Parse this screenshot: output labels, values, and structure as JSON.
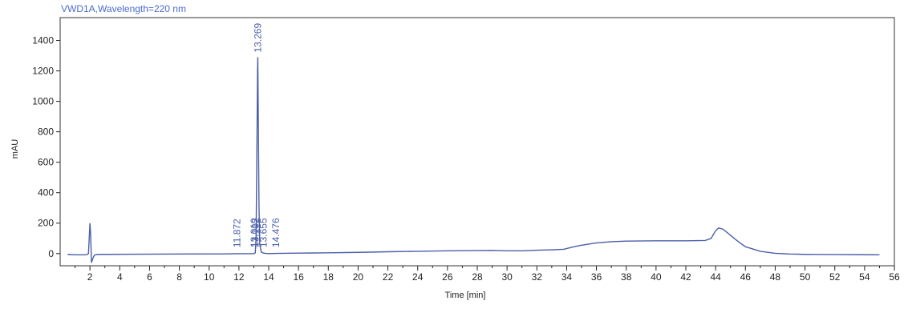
{
  "chart_data": {
    "type": "line",
    "title": "VWD1A,Wavelength=220 nm",
    "xlabel": "Time [min]",
    "ylabel": "mAU",
    "xlim": [
      0,
      56
    ],
    "ylim": [
      -80,
      1550
    ],
    "xticks": [
      2,
      4,
      6,
      8,
      10,
      12,
      14,
      16,
      18,
      20,
      22,
      24,
      26,
      28,
      30,
      32,
      34,
      36,
      38,
      40,
      42,
      44,
      46,
      48,
      50,
      52,
      54,
      56
    ],
    "yticks": [
      0,
      200,
      400,
      600,
      800,
      1000,
      1200,
      1400
    ],
    "grid": false,
    "colors": {
      "trace": "#4a5fa8",
      "title": "#4a6bd0",
      "axis": "#222222",
      "frame": "#333333"
    },
    "series": [
      {
        "x": [
          0.5,
          1.0,
          1.5,
          1.8,
          1.9,
          2.0,
          2.05,
          2.1,
          2.2,
          2.3,
          2.5,
          3,
          5,
          8,
          10,
          11,
          11.872,
          12,
          12.5,
          13.0,
          13.1,
          13.15,
          13.2,
          13.25,
          13.269,
          13.3,
          13.35,
          13.4,
          13.5,
          13.655,
          13.8,
          14.0,
          14.476,
          15,
          18,
          20,
          22,
          24,
          26,
          28,
          29,
          30,
          31,
          32,
          33,
          33.8,
          34.5,
          35,
          36,
          37,
          38,
          40,
          42,
          43.3,
          43.7,
          44.0,
          44.2,
          44.5,
          45.0,
          45.5,
          46,
          47,
          48,
          49,
          50,
          52,
          54,
          55
        ],
        "y": [
          -5,
          -8,
          -8,
          -7,
          0,
          200,
          120,
          -60,
          -30,
          -10,
          -5,
          -5,
          -4,
          -3,
          -2,
          -2,
          -1,
          -1,
          -1,
          0,
          5,
          100,
          600,
          1200,
          1290,
          900,
          300,
          60,
          10,
          3,
          1,
          0,
          1,
          2,
          5,
          8,
          12,
          15,
          18,
          20,
          21,
          18,
          18,
          22,
          25,
          28,
          45,
          55,
          70,
          78,
          82,
          84,
          84,
          86,
          100,
          150,
          168,
          160,
          120,
          80,
          45,
          15,
          2,
          -3,
          -5,
          -6,
          -7,
          -8
        ]
      }
    ],
    "peak_labels": [
      {
        "x": 11.872,
        "text": "11.872"
      },
      {
        "x": 13.019,
        "text": "13.019"
      },
      {
        "x": 13.102,
        "text": "13.102"
      },
      {
        "x": 13.655,
        "text": "13.655"
      },
      {
        "x": 14.476,
        "text": "14.476"
      },
      {
        "x": 13.269,
        "text": "13.269"
      }
    ]
  }
}
